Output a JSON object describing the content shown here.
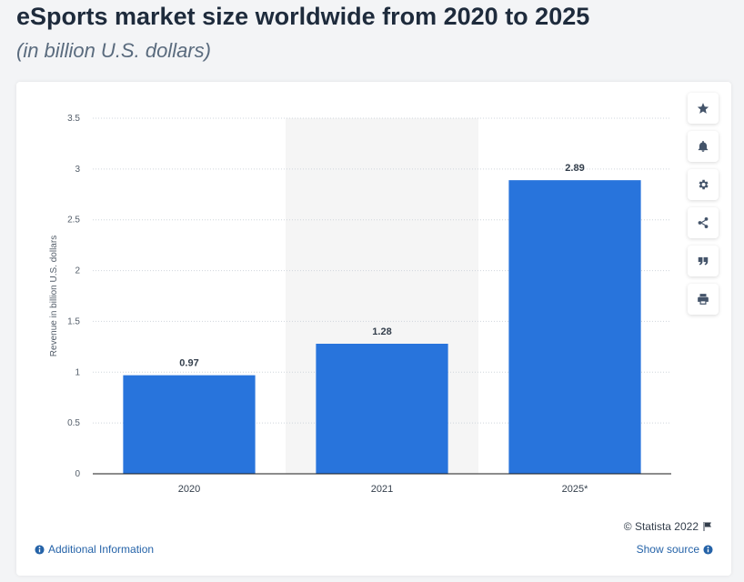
{
  "header": {
    "title": "eSports market size worldwide from 2020 to 2025",
    "subtitle": "(in billion U.S. dollars)"
  },
  "toolbar": {
    "buttons": [
      {
        "icon": "star-icon"
      },
      {
        "icon": "bell-icon"
      },
      {
        "icon": "gear-icon"
      },
      {
        "icon": "share-icon"
      },
      {
        "icon": "quote-icon"
      },
      {
        "icon": "print-icon"
      }
    ]
  },
  "footer": {
    "copyright": "© Statista 2022",
    "additional_info": "Additional Information",
    "show_source": "Show source"
  },
  "colors": {
    "bar": "#2874dc",
    "highlight_band": "#f5f5f5",
    "grid": "#cfd5dc",
    "axis": "#1a1a1a"
  },
  "chart_data": {
    "type": "bar",
    "categories": [
      "2020",
      "2021",
      "2025*"
    ],
    "values": [
      0.97,
      1.28,
      2.89
    ],
    "data_labels": [
      "0.97",
      "1.28",
      "2.89"
    ],
    "yticks": [
      "0",
      "0.5",
      "1",
      "1.5",
      "2",
      "2.5",
      "3",
      "3.5"
    ],
    "ylim": [
      0,
      3.5
    ],
    "ylabel": "Revenue in billion U.S. dollars",
    "xlabel": "",
    "highlighted_category": "2021",
    "grid": true,
    "grid_style": "dotted",
    "legend": "none"
  }
}
